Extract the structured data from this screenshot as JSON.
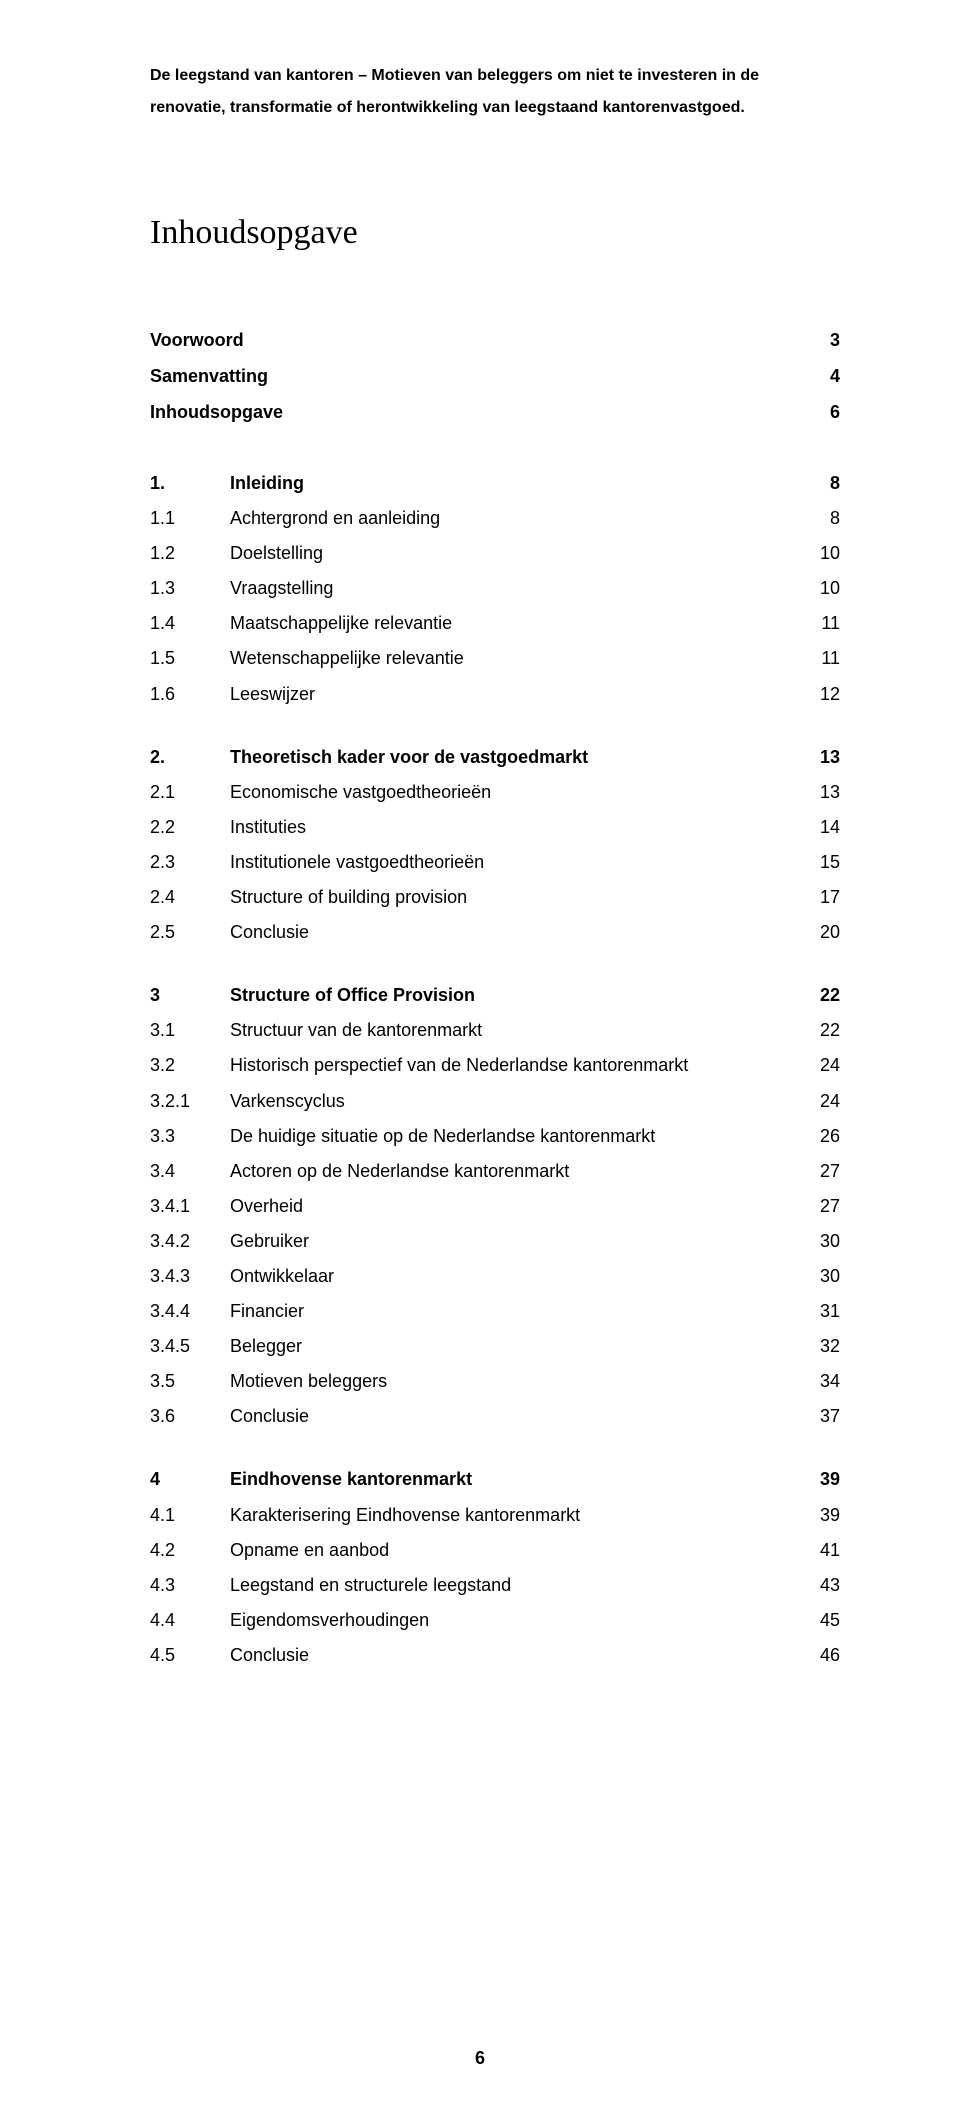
{
  "header": {
    "line1": "De leegstand van kantoren – Motieven van beleggers om niet te investeren in de",
    "line2": "renovatie, transformatie of herontwikkeling van leegstaand kantorenvastgoed."
  },
  "title": "Inhoudsopgave",
  "front": [
    {
      "label": "Voorwoord",
      "page": "3"
    },
    {
      "label": "Samenvatting",
      "page": "4"
    },
    {
      "label": "Inhoudsopgave",
      "page": "6"
    }
  ],
  "blocks": [
    [
      {
        "num": "1.",
        "text": "Inleiding",
        "page": "8",
        "bold": true
      },
      {
        "num": "1.1",
        "text": "Achtergrond en aanleiding",
        "page": "8",
        "bold": false
      },
      {
        "num": "1.2",
        "text": "Doelstelling",
        "page": "10",
        "bold": false
      },
      {
        "num": "1.3",
        "text": "Vraagstelling",
        "page": "10",
        "bold": false
      },
      {
        "num": "1.4",
        "text": "Maatschappelijke relevantie",
        "page": "11",
        "bold": false
      },
      {
        "num": "1.5",
        "text": "Wetenschappelijke relevantie",
        "page": "11",
        "bold": false
      },
      {
        "num": "1.6",
        "text": "Leeswijzer",
        "page": "12",
        "bold": false
      }
    ],
    [
      {
        "num": "2.",
        "text": "Theoretisch kader voor de vastgoedmarkt",
        "page": "13",
        "bold": true
      },
      {
        "num": "2.1",
        "text": "Economische vastgoedtheorieën",
        "page": "13",
        "bold": false
      },
      {
        "num": "2.2",
        "text": "Instituties",
        "page": "14",
        "bold": false
      },
      {
        "num": "2.3",
        "text": "Institutionele vastgoedtheorieën",
        "page": "15",
        "bold": false
      },
      {
        "num": "2.4",
        "text": "Structure of building provision",
        "page": "17",
        "bold": false
      },
      {
        "num": "2.5",
        "text": "Conclusie",
        "page": "20",
        "bold": false
      }
    ],
    [
      {
        "num": "3",
        "text": "Structure of Office Provision",
        "page": "22",
        "bold": true
      },
      {
        "num": "3.1",
        "text": "Structuur van de kantorenmarkt",
        "page": "22",
        "bold": false
      },
      {
        "num": "3.2",
        "text": "Historisch perspectief van de Nederlandse kantorenmarkt",
        "page": "24",
        "bold": false
      },
      {
        "num": "3.2.1",
        "text": "Varkenscyclus",
        "page": "24",
        "bold": false
      },
      {
        "num": "3.3",
        "text": "De huidige situatie op de Nederlandse kantorenmarkt",
        "page": "26",
        "bold": false
      },
      {
        "num": "3.4",
        "text": "Actoren op de Nederlandse kantorenmarkt",
        "page": "27",
        "bold": false
      },
      {
        "num": "3.4.1",
        "text": "Overheid",
        "page": "27",
        "bold": false
      },
      {
        "num": "3.4.2",
        "text": "Gebruiker",
        "page": "30",
        "bold": false
      },
      {
        "num": "3.4.3",
        "text": "Ontwikkelaar",
        "page": "30",
        "bold": false
      },
      {
        "num": "3.4.4",
        "text": "Financier",
        "page": "31",
        "bold": false
      },
      {
        "num": "3.4.5",
        "text": "Belegger",
        "page": "32",
        "bold": false
      },
      {
        "num": "3.5",
        "text": "Motieven beleggers",
        "page": "34",
        "bold": false
      },
      {
        "num": "3.6",
        "text": "Conclusie",
        "page": "37",
        "bold": false
      }
    ],
    [
      {
        "num": "4",
        "text": "Eindhovense kantorenmarkt",
        "page": "39",
        "bold": true
      },
      {
        "num": "4.1",
        "text": "Karakterisering Eindhovense kantorenmarkt",
        "page": "39",
        "bold": false
      },
      {
        "num": "4.2",
        "text": "Opname en aanbod",
        "page": "41",
        "bold": false
      },
      {
        "num": "4.3",
        "text": "Leegstand en structurele leegstand",
        "page": "43",
        "bold": false
      },
      {
        "num": "4.4",
        "text": "Eigendomsverhoudingen",
        "page": "45",
        "bold": false
      },
      {
        "num": "4.5",
        "text": "Conclusie",
        "page": "46",
        "bold": false
      }
    ]
  ],
  "pageNumber": "6",
  "style": {
    "textColor": "#000000",
    "background": "#ffffff",
    "headerFontSize": 16,
    "titleFontSize": 34,
    "bodyFontSize": 18,
    "numColWidth": 80,
    "pageColWidth": 40
  }
}
